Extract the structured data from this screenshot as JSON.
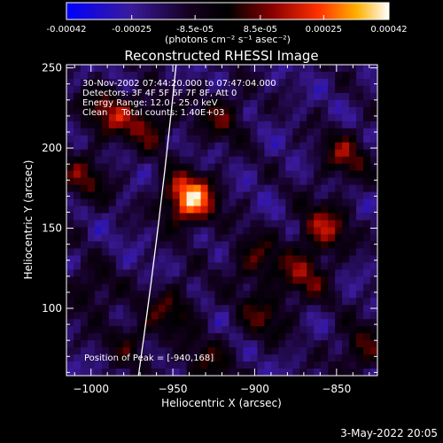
{
  "chart_data": {
    "type": "heatmap",
    "title": "Reconstructed RHESSI Image",
    "xlabel": "Heliocentric X (arcsec)",
    "ylabel": "Heliocentric Y (arcsec)",
    "xlim": [
      -1015,
      -825
    ],
    "ylim": [
      58,
      252
    ],
    "xticks": [
      -1000,
      -950,
      -900,
      -850
    ],
    "yticks": [
      100,
      150,
      200,
      250
    ],
    "colorbar": {
      "range": [
        -0.00042,
        0.00042
      ],
      "ticks": [
        "-0.00042",
        "-0.00025",
        "-8.5e-05",
        "8.5e-05",
        "0.00025",
        "0.00042"
      ],
      "unit_label": "(photons cm⁻² s⁻¹ asec⁻²)",
      "colors": [
        "#0000ff",
        "#3a1a9a",
        "#140020",
        "#000000",
        "#8a0000",
        "#ff3000",
        "#ffb000",
        "#ffffff"
      ]
    },
    "annotations": [
      "30-Nov-2002 07:44:20.000 to 07:47:04.000",
      "Detectors: 3F 4F 5F 6F 7F 8F, Att 0",
      "Energy Range: 12.0 - 25.0 keV",
      "Clean     Total counts: 1.40E+03"
    ],
    "peak_label": "Position of Peak = [-940,168]",
    "peak": [
      -940,
      168
    ],
    "limb": {
      "top": [
        -948,
        252
      ],
      "bottom": [
        -971,
        58
      ]
    },
    "sources": [
      {
        "x": -940,
        "y": 168,
        "amp": 1.0
      },
      {
        "x": -990,
        "y": 222,
        "amp": 0.5
      },
      {
        "x": -965,
        "y": 215,
        "amp": 0.45
      },
      {
        "x": -1005,
        "y": 180,
        "amp": 0.4
      },
      {
        "x": -920,
        "y": 220,
        "amp": 0.38
      },
      {
        "x": -858,
        "y": 150,
        "amp": 0.55
      },
      {
        "x": -845,
        "y": 195,
        "amp": 0.45
      },
      {
        "x": -870,
        "y": 120,
        "amp": 0.45
      },
      {
        "x": -900,
        "y": 130,
        "amp": 0.4
      },
      {
        "x": -895,
        "y": 95,
        "amp": 0.38
      },
      {
        "x": -950,
        "y": 100,
        "amp": 0.38
      },
      {
        "x": -1000,
        "y": 110,
        "amp": 0.3
      },
      {
        "x": -975,
        "y": 80,
        "amp": 0.3
      },
      {
        "x": -930,
        "y": 65,
        "amp": 0.35
      },
      {
        "x": -835,
        "y": 75,
        "amp": 0.4
      }
    ]
  },
  "footer": {
    "date": "3-May-2022 20:05"
  }
}
